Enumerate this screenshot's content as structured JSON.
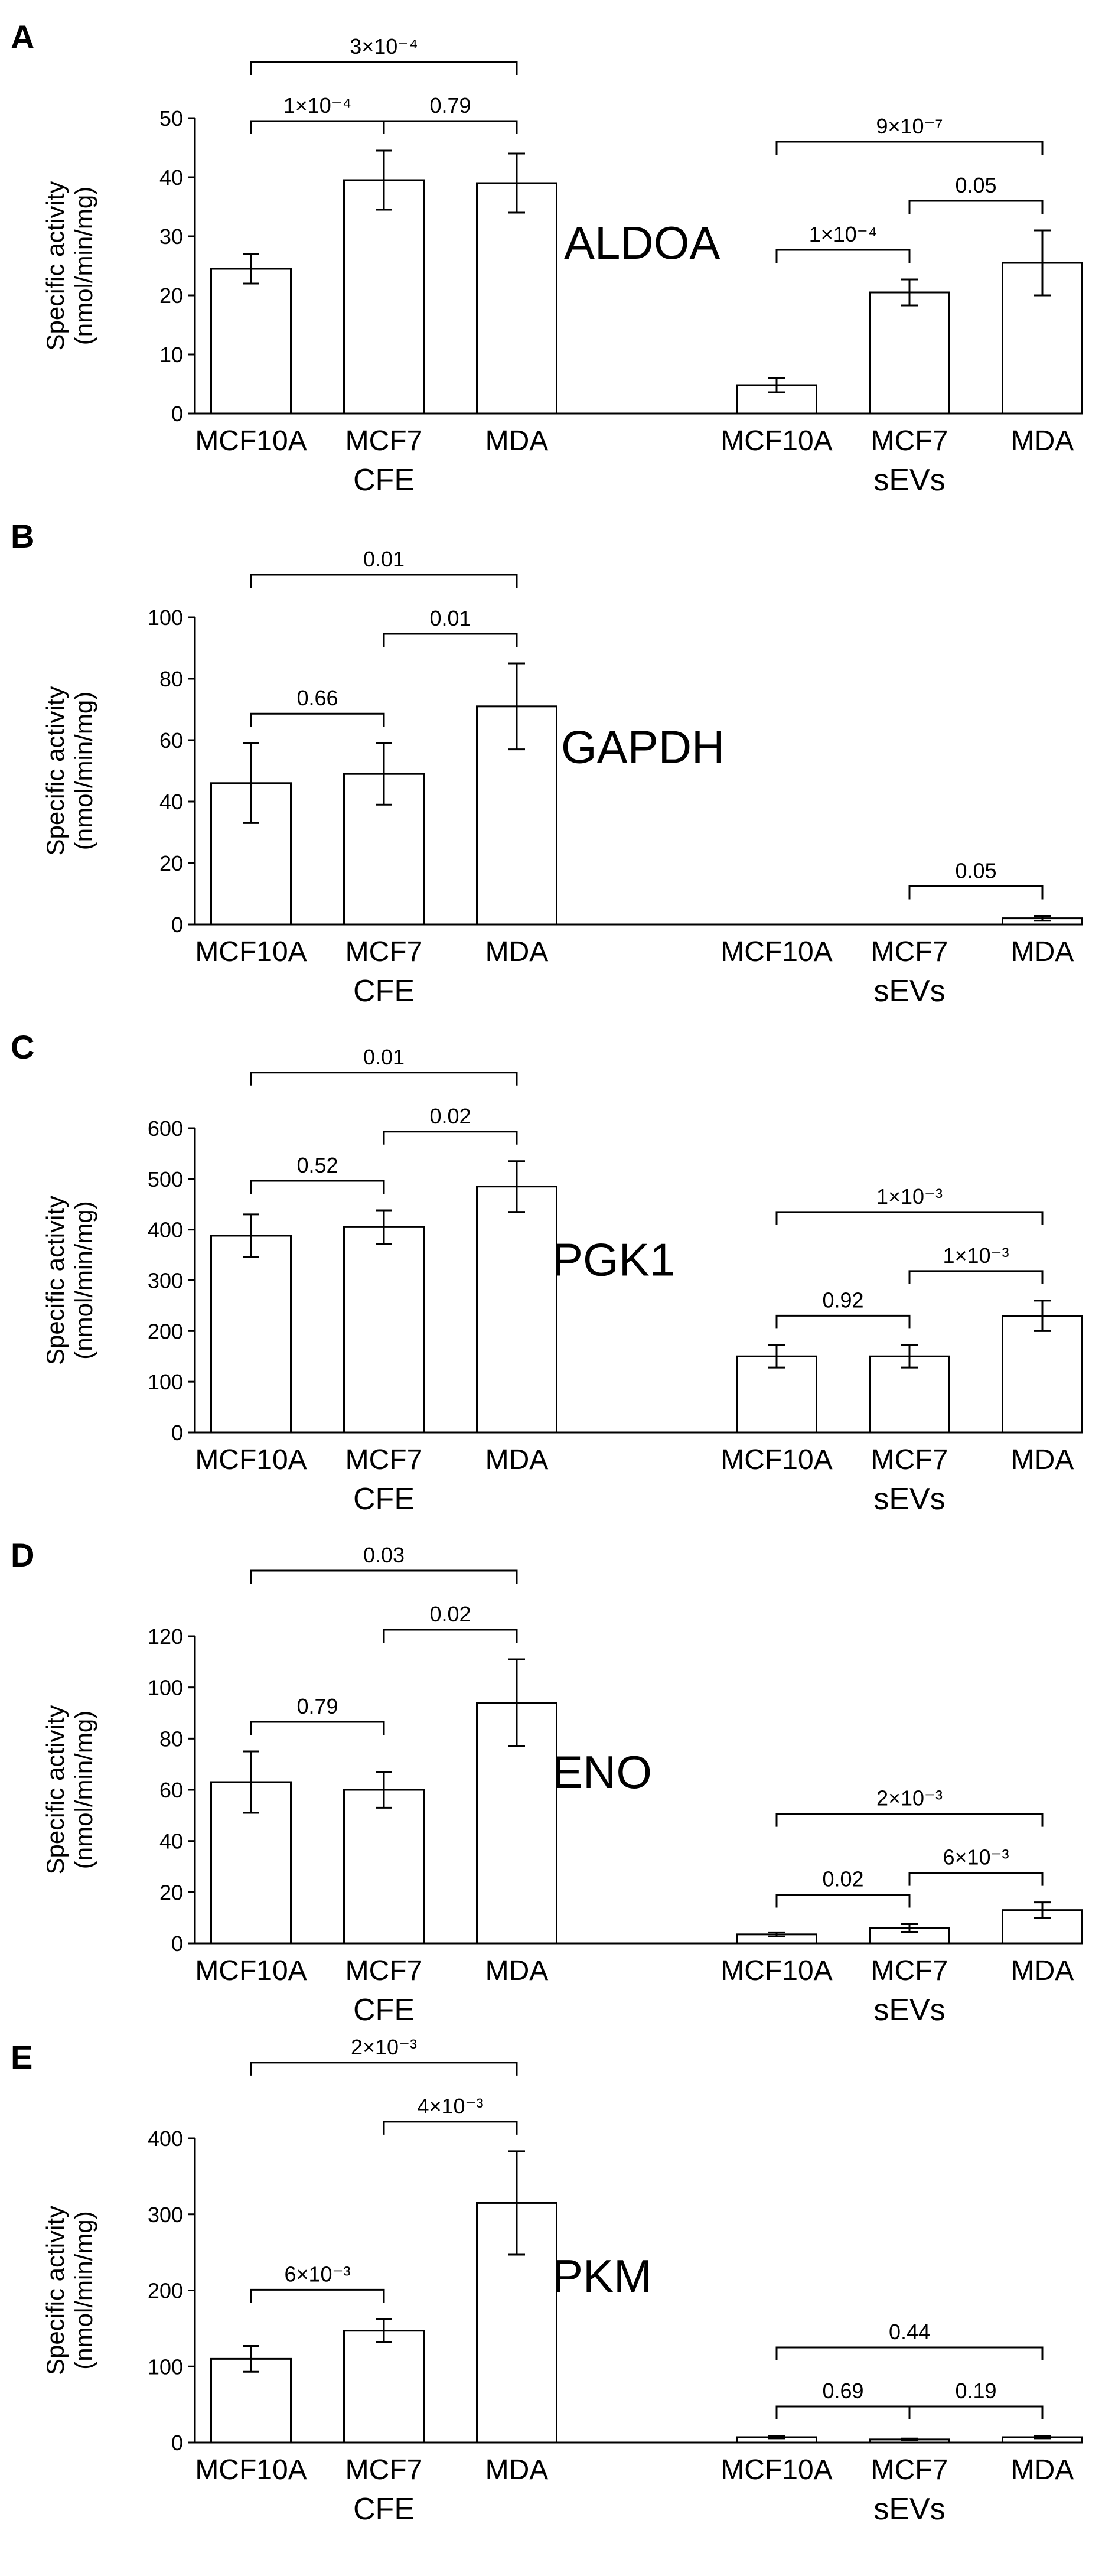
{
  "charts": [
    {
      "panel": "A",
      "enzyme": "ALDOA",
      "type": "bar",
      "ylabel_line1": "Specific activity",
      "ylabel_line2": "(nmol/min/mg)",
      "ylim": [
        0,
        50
      ],
      "yticks": [
        0,
        10,
        20,
        30,
        40,
        50
      ],
      "groups": [
        {
          "name": "CFE",
          "categories": [
            "MCF10A",
            "MCF7",
            "MDA"
          ],
          "values": [
            24.5,
            39.5,
            39
          ],
          "errors": [
            2.5,
            5,
            5
          ],
          "comparisons": [
            {
              "from": 0,
              "to": 1,
              "label": "1×10⁻⁴"
            },
            {
              "from": 1,
              "to": 2,
              "label": "0.79"
            },
            {
              "from": 0,
              "to": 2,
              "label": "3×10⁻⁴"
            }
          ]
        },
        {
          "name": "sEVs",
          "categories": [
            "MCF10A",
            "MCF7",
            "MDA"
          ],
          "values": [
            4.8,
            20.5,
            25.5
          ],
          "errors": [
            1.2,
            2.2,
            5.5
          ],
          "comparisons": [
            {
              "from": 0,
              "to": 1,
              "label": "1×10⁻⁴"
            },
            {
              "from": 1,
              "to": 2,
              "label": "0.05"
            },
            {
              "from": 0,
              "to": 2,
              "label": "9×10⁻⁷"
            }
          ]
        }
      ]
    },
    {
      "panel": "B",
      "enzyme": "GAPDH",
      "type": "bar",
      "ylabel_line1": "Specific activity",
      "ylabel_line2": "(nmol/min/mg)",
      "ylim": [
        0,
        100
      ],
      "yticks": [
        0,
        20,
        40,
        60,
        80,
        100
      ],
      "groups": [
        {
          "name": "CFE",
          "categories": [
            "MCF10A",
            "MCF7",
            "MDA"
          ],
          "values": [
            46,
            49,
            71
          ],
          "errors": [
            13,
            10,
            14
          ],
          "comparisons": [
            {
              "from": 0,
              "to": 1,
              "label": "0.66"
            },
            {
              "from": 1,
              "to": 2,
              "label": "0.01"
            },
            {
              "from": 0,
              "to": 2,
              "label": "0.01"
            }
          ]
        },
        {
          "name": "sEVs",
          "categories": [
            "MCF10A",
            "MCF7",
            "MDA"
          ],
          "values": [
            0,
            0,
            2
          ],
          "errors": [
            0,
            0,
            0.8
          ],
          "comparisons": [
            {
              "from": 1,
              "to": 2,
              "label": "0.05"
            }
          ]
        }
      ]
    },
    {
      "panel": "C",
      "enzyme": "PGK1",
      "type": "bar",
      "ylabel_line1": "Specific activity",
      "ylabel_line2": "(nmol/min/mg)",
      "ylim": [
        0,
        600
      ],
      "yticks": [
        0,
        100,
        200,
        300,
        400,
        500,
        600
      ],
      "groups": [
        {
          "name": "CFE",
          "categories": [
            "MCF10A",
            "MCF7",
            "MDA"
          ],
          "values": [
            388,
            405,
            485
          ],
          "errors": [
            42,
            33,
            50
          ],
          "comparisons": [
            {
              "from": 0,
              "to": 1,
              "label": "0.52"
            },
            {
              "from": 1,
              "to": 2,
              "label": "0.02"
            },
            {
              "from": 0,
              "to": 2,
              "label": "0.01"
            }
          ]
        },
        {
          "name": "sEVs",
          "categories": [
            "MCF10A",
            "MCF7",
            "MDA"
          ],
          "values": [
            150,
            150,
            230
          ],
          "errors": [
            22,
            22,
            30
          ],
          "comparisons": [
            {
              "from": 0,
              "to": 1,
              "label": "0.92"
            },
            {
              "from": 1,
              "to": 2,
              "label": "1×10⁻³"
            },
            {
              "from": 0,
              "to": 2,
              "label": "1×10⁻³"
            }
          ]
        }
      ]
    },
    {
      "panel": "D",
      "enzyme": "ENO",
      "type": "bar",
      "ylabel_line1": "Specific activity",
      "ylabel_line2": "(nmol/min/mg)",
      "ylim": [
        0,
        120
      ],
      "yticks": [
        0,
        20,
        40,
        60,
        80,
        100,
        120
      ],
      "groups": [
        {
          "name": "CFE",
          "categories": [
            "MCF10A",
            "MCF7",
            "MDA"
          ],
          "values": [
            63,
            60,
            94
          ],
          "errors": [
            12,
            7,
            17
          ],
          "comparisons": [
            {
              "from": 0,
              "to": 1,
              "label": "0.79"
            },
            {
              "from": 1,
              "to": 2,
              "label": "0.02"
            },
            {
              "from": 0,
              "to": 2,
              "label": "0.03"
            }
          ]
        },
        {
          "name": "sEVs",
          "categories": [
            "MCF10A",
            "MCF7",
            "MDA"
          ],
          "values": [
            3.5,
            6,
            13
          ],
          "errors": [
            0.8,
            1.5,
            3
          ],
          "comparisons": [
            {
              "from": 0,
              "to": 1,
              "label": "0.02"
            },
            {
              "from": 1,
              "to": 2,
              "label": "6×10⁻³"
            },
            {
              "from": 0,
              "to": 2,
              "label": "2×10⁻³"
            }
          ]
        }
      ]
    },
    {
      "panel": "E",
      "enzyme": "PKM",
      "type": "bar",
      "ylabel_line1": "Specific activity",
      "ylabel_line2": "(nmol/min/mg)",
      "ylim": [
        0,
        400
      ],
      "yticks": [
        0,
        100,
        200,
        300,
        400
      ],
      "groups": [
        {
          "name": "CFE",
          "categories": [
            "MCF10A",
            "MCF7",
            "MDA"
          ],
          "values": [
            110,
            147,
            315
          ],
          "errors": [
            17,
            15,
            68
          ],
          "comparisons": [
            {
              "from": 0,
              "to": 1,
              "label": "6×10⁻³"
            },
            {
              "from": 1,
              "to": 2,
              "label": "4×10⁻³"
            },
            {
              "from": 0,
              "to": 2,
              "label": "2×10⁻³"
            }
          ]
        },
        {
          "name": "sEVs",
          "categories": [
            "MCF10A",
            "MCF7",
            "MDA"
          ],
          "values": [
            7,
            4,
            7
          ],
          "errors": [
            1.5,
            1.2,
            1.5
          ],
          "comparisons": [
            {
              "from": 0,
              "to": 1,
              "label": "0.69"
            },
            {
              "from": 1,
              "to": 2,
              "label": "0.19"
            },
            {
              "from": 0,
              "to": 2,
              "label": "0.44"
            }
          ]
        }
      ]
    }
  ]
}
